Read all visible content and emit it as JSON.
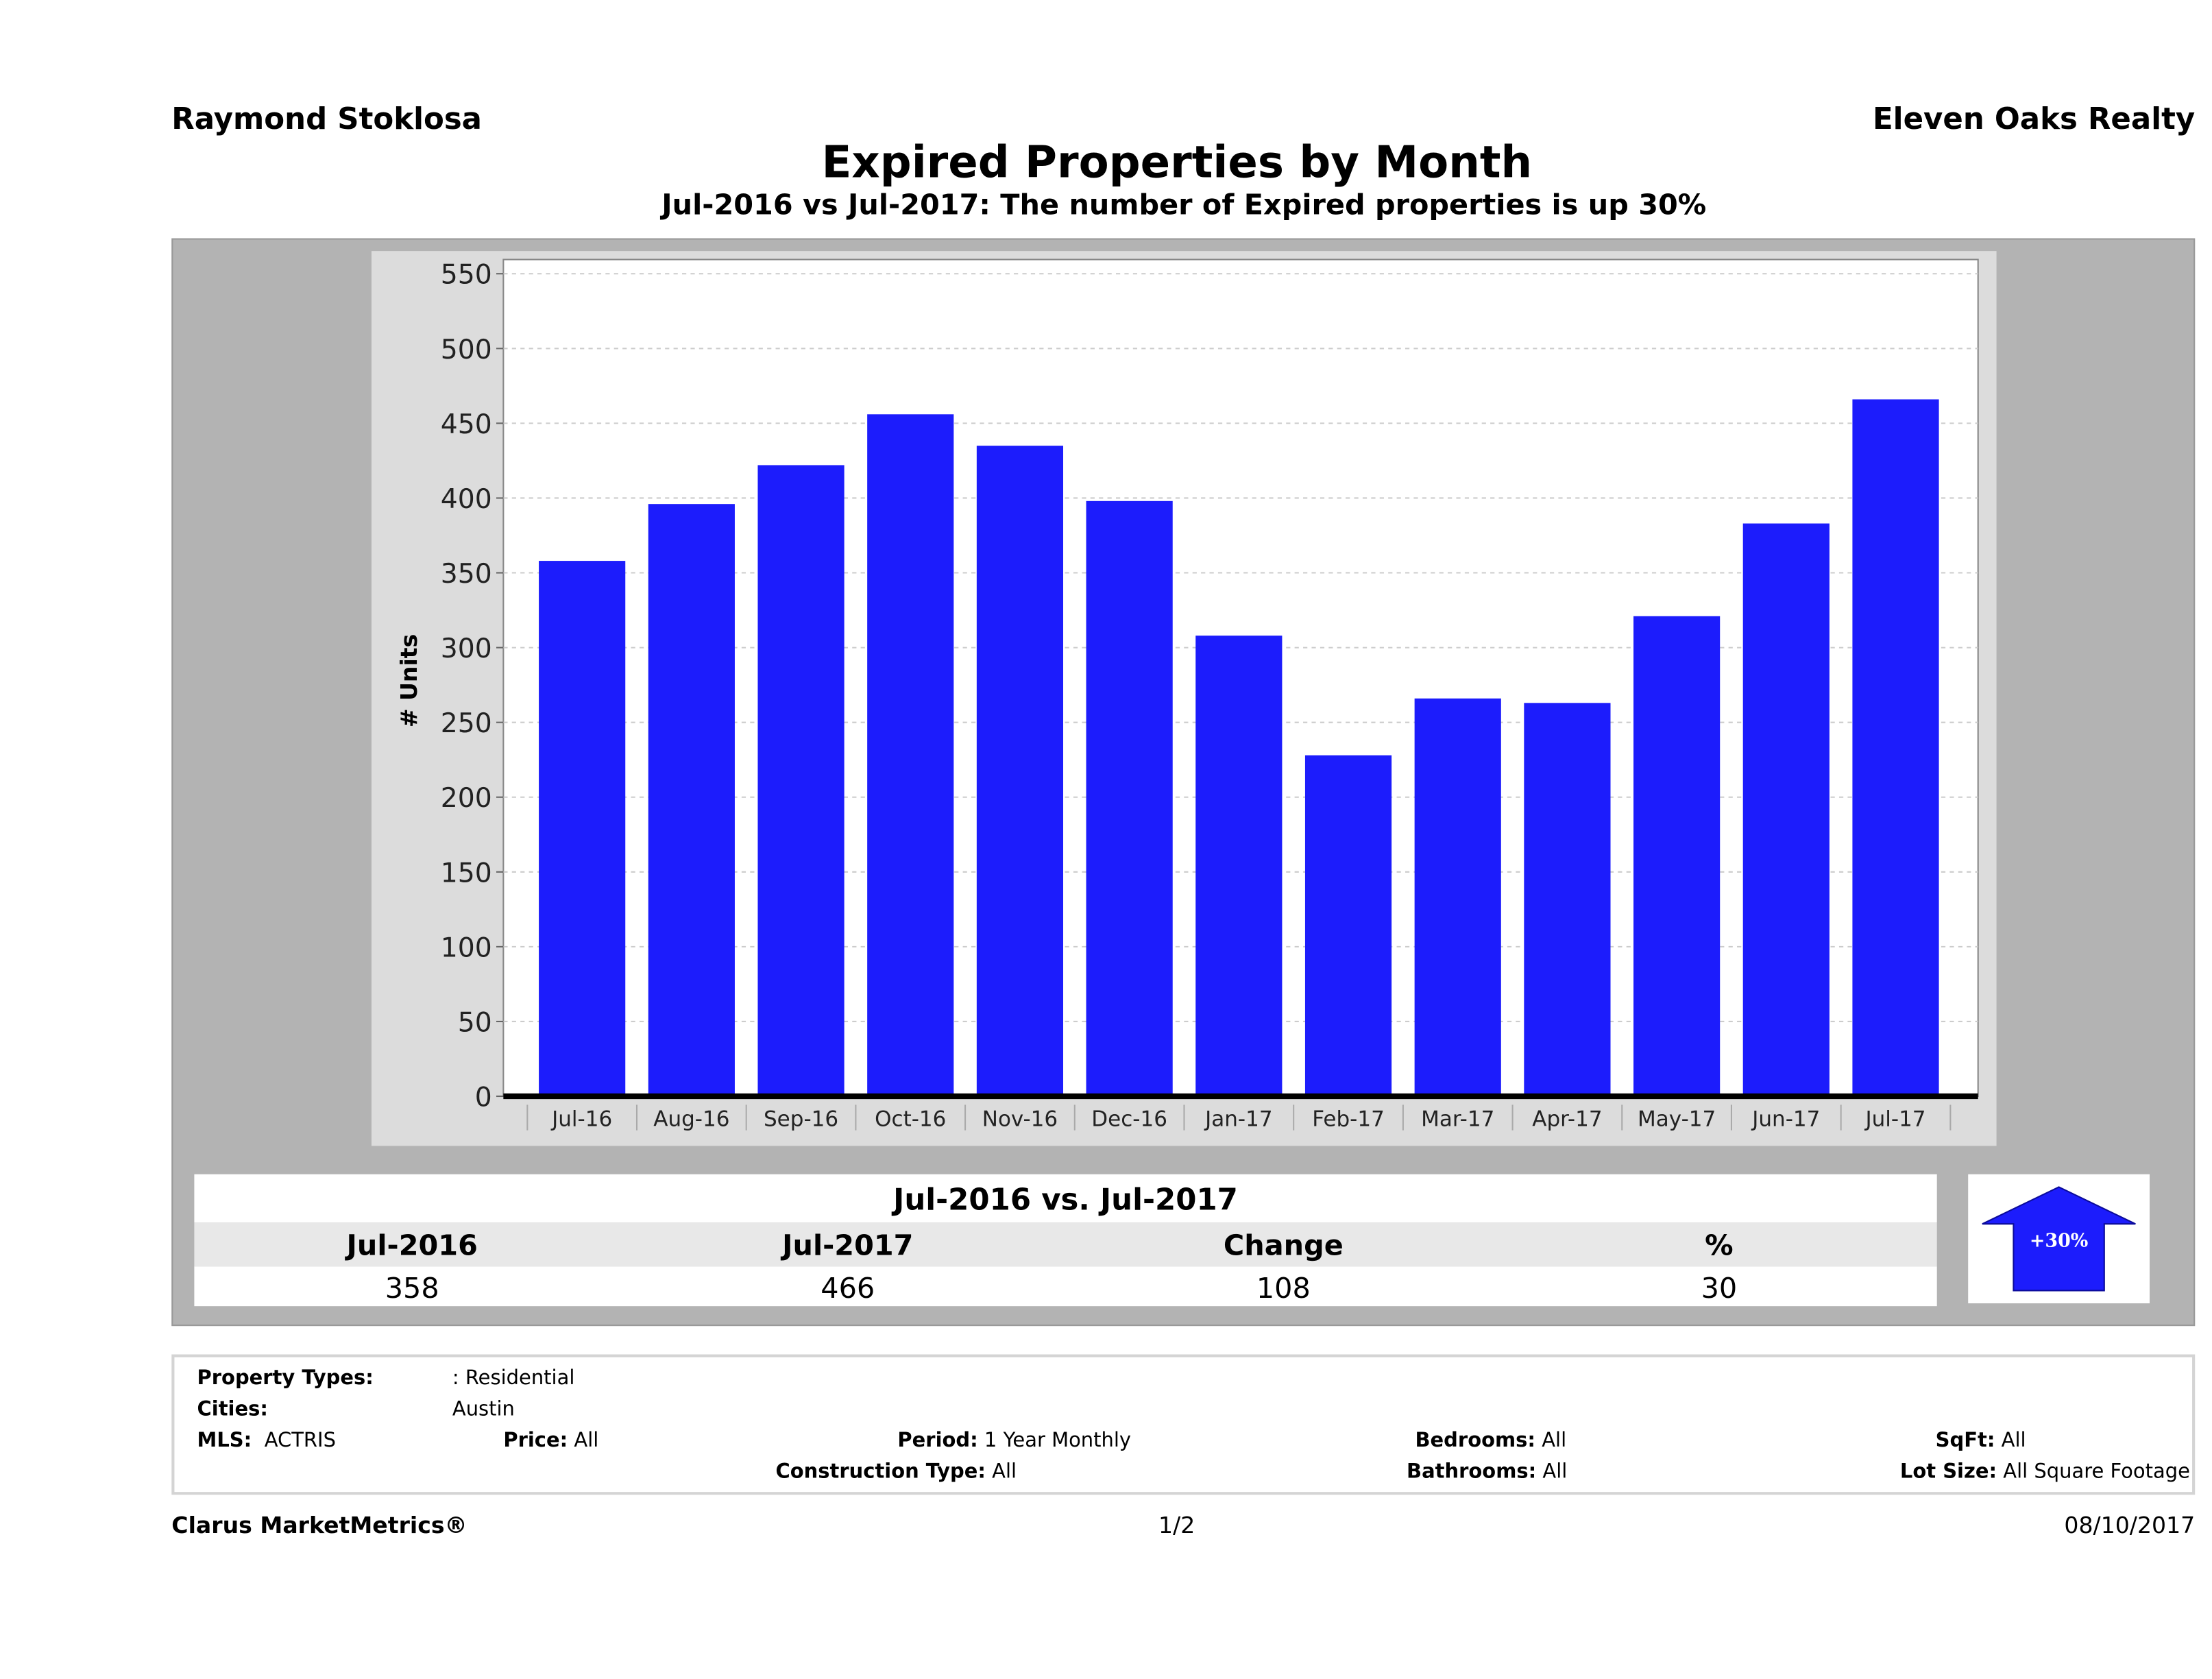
{
  "header": {
    "agent": "Raymond Stoklosa",
    "brokerage": "Eleven Oaks Realty"
  },
  "chart_data": {
    "type": "bar",
    "title": "Expired Properties by Month",
    "subtitle": "Jul-2016 vs Jul-2017: The number of Expired  properties is up 30%",
    "xlabel": "",
    "ylabel": "# Units",
    "ylim": [
      0,
      550
    ],
    "yticks": [
      0,
      50,
      100,
      150,
      200,
      250,
      300,
      350,
      400,
      450,
      500,
      550
    ],
    "grid": true,
    "categories": [
      "Jul-16",
      "Aug-16",
      "Sep-16",
      "Oct-16",
      "Nov-16",
      "Dec-16",
      "Jan-17",
      "Feb-17",
      "Mar-17",
      "Apr-17",
      "May-17",
      "Jun-17",
      "Jul-17"
    ],
    "values": [
      358,
      396,
      422,
      456,
      435,
      398,
      308,
      228,
      266,
      263,
      321,
      383,
      466
    ],
    "bar_color": "#1c1cfc"
  },
  "summary": {
    "title": "Jul-2016 vs. Jul-2017",
    "headers": [
      "Jul-2016",
      "Jul-2017",
      "Change",
      "%"
    ],
    "values": [
      "358",
      "466",
      "108",
      "30"
    ],
    "badge": "+30%",
    "badge_icon": "up-arrow-icon"
  },
  "filters": {
    "property_types_label": "Property Types:",
    "property_types_value": ": Residential",
    "cities_label": "Cities:",
    "cities_value": "Austin",
    "mls_label": "MLS:",
    "mls_value": "ACTRIS",
    "price_label": "Price:",
    "price_value": "All",
    "period_label": "Period:",
    "period_value": "1 Year Monthly",
    "construction_label": "Construction Type:",
    "construction_value": "All",
    "bedrooms_label": "Bedrooms:",
    "bedrooms_value": "All",
    "bathrooms_label": "Bathrooms:",
    "bathrooms_value": "All",
    "sqft_label": "SqFt:",
    "sqft_value": "All",
    "lot_label": "Lot Size:",
    "lot_value": "All Square Footage"
  },
  "footer": {
    "brand": "Clarus MarketMetrics®",
    "page": "1/2",
    "date": "08/10/2017"
  }
}
